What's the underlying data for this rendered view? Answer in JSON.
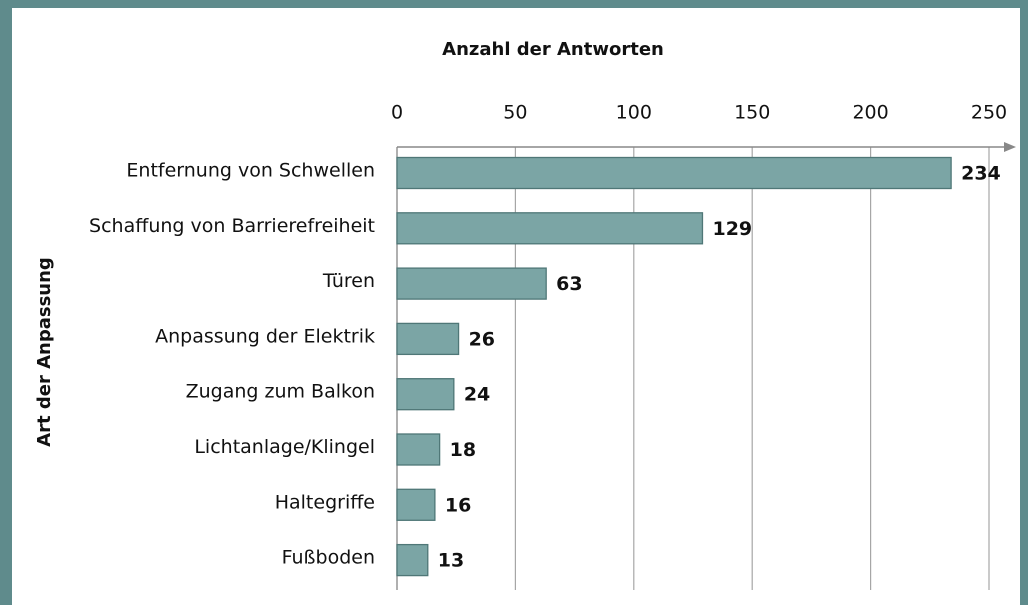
{
  "chart_data": {
    "type": "bar",
    "orientation": "horizontal",
    "x_label": "Anzahl der Antworten",
    "y_label": "Art der Anpassung",
    "categories": [
      "Entfernung von Schwellen",
      "Schaffung von Barrierefreiheit",
      "Türen",
      "Anpassung der Elektrik",
      "Zugang zum Balkon",
      "Lichtanlage/Klingel",
      "Haltegriffe",
      "Fußboden"
    ],
    "values": [
      234,
      129,
      63,
      26,
      24,
      18,
      16,
      13
    ],
    "color": "#7ba5a5",
    "xlim": [
      0,
      250
    ],
    "xticks": [
      0,
      50,
      100,
      150,
      200,
      250
    ],
    "grid": true
  }
}
